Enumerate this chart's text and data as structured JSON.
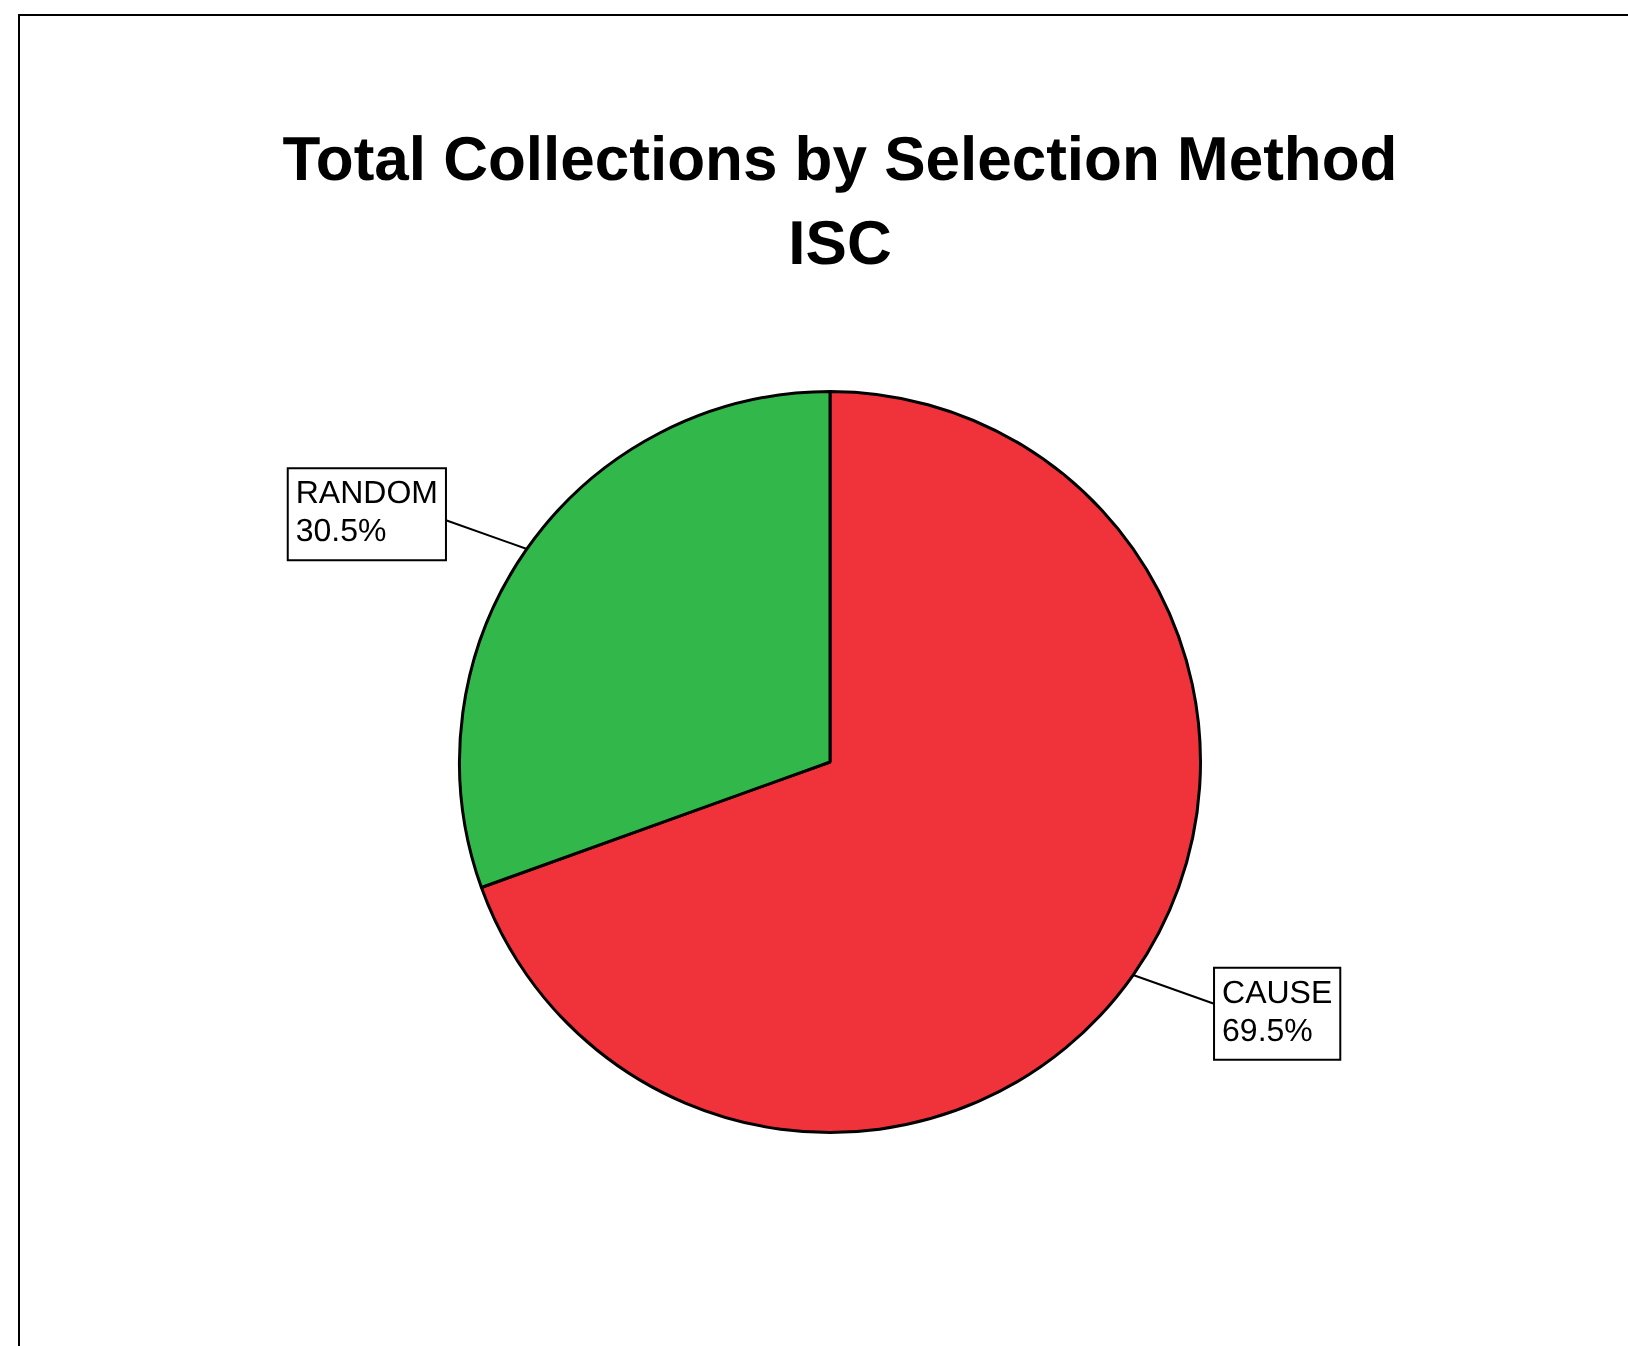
{
  "chart_data": {
    "type": "pie",
    "title": "Total Collections by Selection Method",
    "subtitle": "ISC",
    "categories": [
      "CAUSE",
      "RANDOM"
    ],
    "values": [
      69.5,
      30.5
    ],
    "colors": [
      "#f0323a",
      "#32b84a"
    ],
    "value_labels": [
      "69.5%",
      "30.5%"
    ],
    "legend": false
  }
}
